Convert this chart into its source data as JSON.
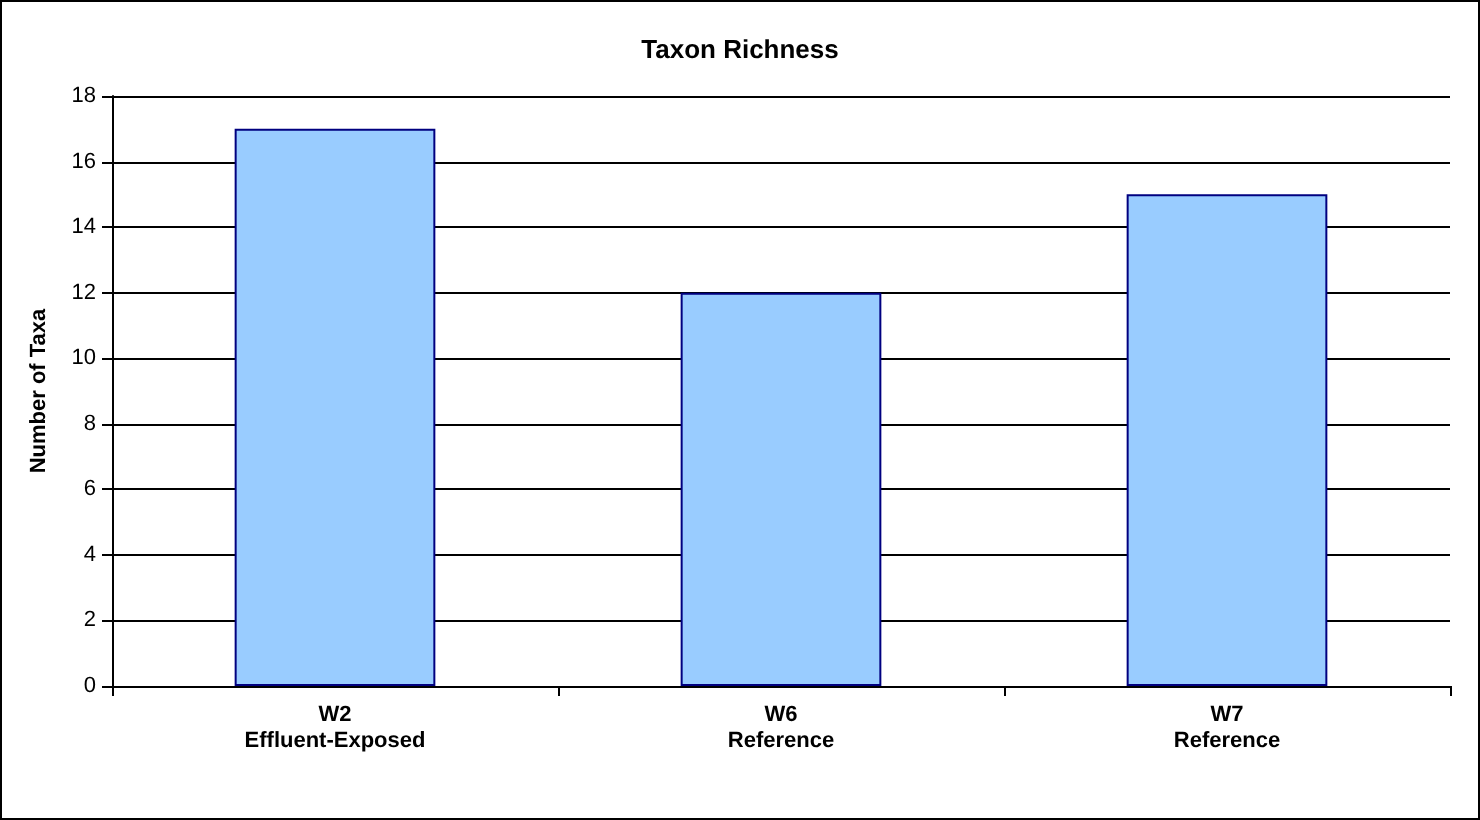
{
  "chart_data": {
    "type": "bar",
    "title": "Taxon Richness",
    "ylabel": "Number of Taxa",
    "categories": [
      "W2\nEffluent-Exposed",
      "W6\nReference",
      "W7\nReference"
    ],
    "values": [
      17,
      12,
      15
    ],
    "color": "#99ccff",
    "ylim": [
      0,
      18
    ],
    "yticks": [
      0,
      2,
      4,
      6,
      8,
      10,
      12,
      14,
      16,
      18
    ],
    "grid": "y"
  }
}
